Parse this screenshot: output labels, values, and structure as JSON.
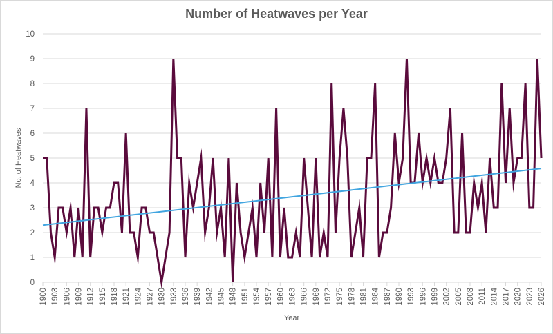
{
  "chart_data": {
    "type": "line",
    "title": "Number of Heatwaves per Year",
    "xlabel": "Year",
    "ylabel": "No. of Heatwaves",
    "ylim": [
      0,
      10
    ],
    "xlim": [
      1900,
      2026
    ],
    "yticks": [
      "0",
      "1",
      "2",
      "3",
      "4",
      "5",
      "6",
      "7",
      "8",
      "9",
      "10"
    ],
    "xticks": [
      "1900",
      "1903",
      "1906",
      "1909",
      "1912",
      "1915",
      "1918",
      "1921",
      "1924",
      "1927",
      "1930",
      "1933",
      "1936",
      "1939",
      "1942",
      "1945",
      "1948",
      "1951",
      "1954",
      "1957",
      "1960",
      "1963",
      "1966",
      "1969",
      "1972",
      "1975",
      "1978",
      "1981",
      "1984",
      "1987",
      "1990",
      "1993",
      "1996",
      "1999",
      "2002",
      "2005",
      "2008",
      "2011",
      "2014",
      "2017",
      "2020",
      "2023",
      "2026"
    ],
    "grid": true,
    "colors": {
      "series": "#5a0b3c",
      "trend": "#41a5e0",
      "grid": "#d9d9d9",
      "text": "#595959"
    },
    "series": [
      {
        "x": [
          1900,
          1901,
          1902,
          1903,
          1904,
          1905,
          1906,
          1907,
          1908,
          1909,
          1910,
          1911,
          1912,
          1913,
          1914,
          1915,
          1916,
          1917,
          1918,
          1919,
          1920,
          1921,
          1922,
          1923,
          1924,
          1925,
          1926,
          1927,
          1928,
          1929,
          1930,
          1931,
          1932,
          1933,
          1934,
          1935,
          1936,
          1937,
          1938,
          1939,
          1940,
          1941,
          1942,
          1943,
          1944,
          1945,
          1946,
          1947,
          1948,
          1949,
          1950,
          1951,
          1952,
          1953,
          1954,
          1955,
          1956,
          1957,
          1958,
          1959,
          1960,
          1961,
          1962,
          1963,
          1964,
          1965,
          1966,
          1967,
          1968,
          1969,
          1970,
          1971,
          1972,
          1973,
          1974,
          1975,
          1976,
          1977,
          1978,
          1979,
          1980,
          1981,
          1982,
          1983,
          1984,
          1985,
          1986,
          1987,
          1988,
          1989,
          1990,
          1991,
          1992,
          1993,
          1994,
          1995,
          1996,
          1997,
          1998,
          1999,
          2000,
          2001,
          2002,
          2003,
          2004,
          2005,
          2006,
          2007,
          2008,
          2009,
          2010,
          2011,
          2012,
          2013,
          2014,
          2015,
          2016,
          2017,
          2018,
          2019,
          2020,
          2021,
          2022,
          2023,
          2024,
          2025,
          2026
        ],
        "values": [
          5,
          5,
          2,
          1,
          3,
          3,
          2,
          3,
          1,
          3,
          1,
          7,
          1,
          3,
          3,
          2,
          3,
          3,
          4,
          4,
          2,
          6,
          2,
          2,
          1,
          3,
          3,
          2,
          2,
          1,
          0,
          1,
          2,
          9,
          5,
          5,
          1,
          4,
          3,
          4,
          5,
          2,
          3,
          5,
          2,
          3,
          1,
          5,
          0,
          4,
          2,
          1,
          2,
          3,
          1,
          4,
          2,
          5,
          1,
          7,
          1,
          3,
          1,
          1,
          2,
          1,
          5,
          3,
          1,
          5,
          1,
          2,
          1,
          8,
          2,
          5,
          7,
          5,
          1,
          2,
          3,
          1,
          5,
          5,
          8,
          1,
          2,
          2,
          3,
          6,
          4,
          5,
          9,
          4,
          4,
          6,
          4,
          5,
          4,
          5,
          4,
          4,
          5,
          7,
          2,
          2,
          6,
          2,
          2,
          4,
          3,
          4,
          2,
          5,
          3,
          3,
          8,
          4,
          7,
          4,
          5,
          5,
          8,
          3,
          3,
          9,
          5
        ]
      },
      {
        "x": [
          1900,
          2026
        ],
        "values": [
          2.3,
          4.58
        ]
      }
    ]
  }
}
